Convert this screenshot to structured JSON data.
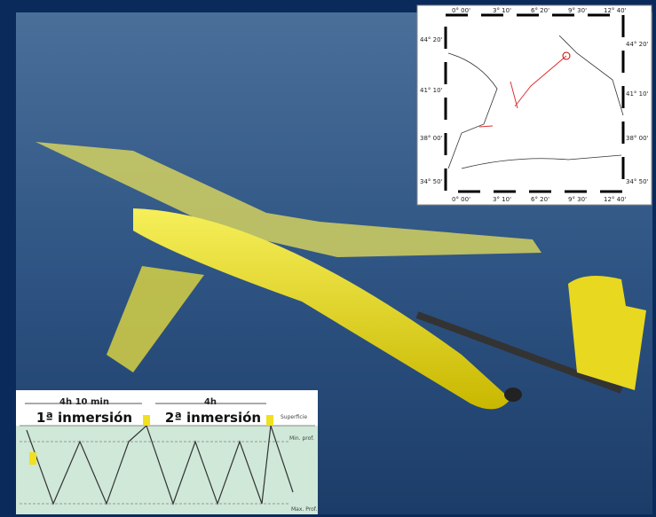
{
  "map": {
    "lon_labels": [
      "0° 00'",
      "3° 10'",
      "6° 20'",
      "9° 30'",
      "12° 40'"
    ],
    "lat_labels": [
      "44° 20'",
      "41° 10'",
      "38° 00'",
      "34° 50'"
    ]
  },
  "diagram": {
    "interval_1": "4h 10 min",
    "interval_2": "4h",
    "dive_1": "1ª inmersión",
    "dive_2": "2ª inmersión",
    "surface": "Superficie",
    "min_depth": "Min. prof.",
    "max_depth": "Max. Prof."
  }
}
